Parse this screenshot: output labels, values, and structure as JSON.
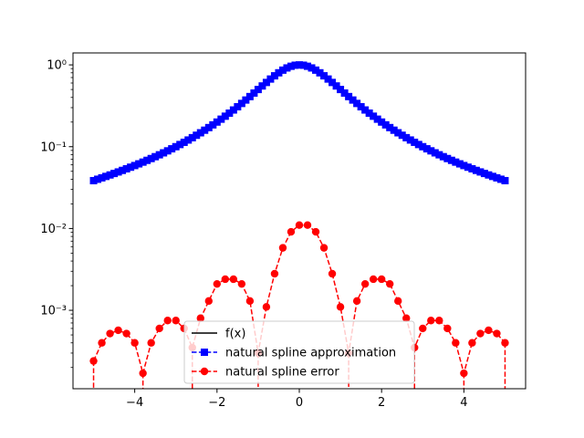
{
  "chart_data": {
    "type": "line",
    "title": "",
    "xlabel": "",
    "ylabel": "",
    "xlim": [
      -5.5,
      5.5
    ],
    "ylim": [
      0.00011,
      1.4
    ],
    "yscale": "log",
    "grid": false,
    "legend_position": "lower-center",
    "x_ticks": [
      -4,
      -2,
      0,
      2,
      4
    ],
    "x_tick_labels": [
      "−4",
      "−2",
      "0",
      "2",
      "4"
    ],
    "y_ticks": [
      0.001,
      0.01,
      0.1,
      1
    ],
    "y_tick_labels": [
      "10⁻³",
      "10⁻²",
      "10⁻¹",
      "10⁰"
    ],
    "function": "1/(1+x^2)",
    "x_range": [
      -5,
      5
    ],
    "num_points": 101,
    "series": [
      {
        "name": "f(x)",
        "style": "solid",
        "marker": "none",
        "color": "#000000",
        "kind": "function"
      },
      {
        "name": "natural spline approximation",
        "style": "dashed",
        "marker": "square",
        "color": "#0000ff",
        "kind": "function"
      },
      {
        "name": "natural spline error",
        "style": "dashed",
        "marker": "circle",
        "color": "#ff0000",
        "kind": "samples",
        "x": [
          -5.0,
          -4.8,
          -4.6,
          -4.4,
          -4.2,
          -4.0,
          -3.8,
          -3.6,
          -3.4,
          -3.2,
          -3.0,
          -2.8,
          -2.6,
          -2.4,
          -2.2,
          -2.0,
          -1.8,
          -1.6,
          -1.4,
          -1.2,
          -1.0,
          -0.8,
          -0.6,
          -0.4,
          -0.2,
          0.0,
          0.2,
          0.4,
          0.6,
          0.8,
          1.0,
          1.2,
          1.4,
          1.6,
          1.8,
          2.0,
          2.2,
          2.4,
          2.6,
          2.8,
          3.0,
          3.2,
          3.4,
          3.6,
          3.8,
          4.0,
          4.2,
          4.4,
          4.6,
          4.8,
          5.0
        ],
        "y": [
          0.00024,
          0.0004,
          0.00052,
          0.00057,
          0.00052,
          0.0004,
          0.00017,
          0.0004,
          0.0006,
          0.00075,
          0.00075,
          0.0006,
          0.00035,
          0.0008,
          0.0013,
          0.0021,
          0.0024,
          0.0024,
          0.0021,
          0.0013,
          0.0003,
          0.0011,
          0.0028,
          0.0058,
          0.0091,
          0.011,
          0.011,
          0.0091,
          0.0058,
          0.0028,
          0.0011,
          0.0003,
          0.0013,
          0.0021,
          0.0024,
          0.0024,
          0.0021,
          0.0013,
          0.0008,
          0.00035,
          0.0006,
          0.00075,
          0.00075,
          0.0006,
          0.0004,
          0.00017,
          0.0004,
          0.00052,
          0.00057,
          0.00052,
          0.0004
        ]
      }
    ]
  }
}
